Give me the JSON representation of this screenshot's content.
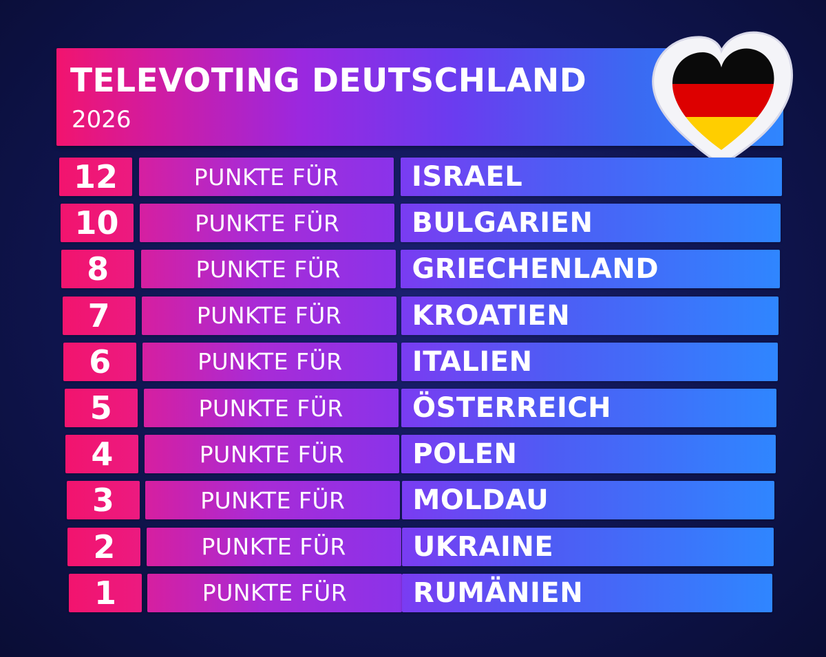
{
  "header": {
    "title": "TELEVOTING DEUTSCHLAND",
    "year": "2026"
  },
  "heart_logo": {
    "flag_colors": [
      "#000000",
      "#dd0000",
      "#ffce00"
    ],
    "icon": "germany-flag-heart-icon"
  },
  "colors": {
    "points": "#f2146e",
    "accent_purple": "#8a33ea",
    "accent_blue": "#2f86ff"
  },
  "results": [
    {
      "points": "12",
      "label": "PUNKTE FÜR",
      "country": "ISRAEL"
    },
    {
      "points": "10",
      "label": "PUNKTE FÜR",
      "country": "BULGARIEN"
    },
    {
      "points": "8",
      "label": "PUNKTE FÜR",
      "country": "GRIECHENLAND"
    },
    {
      "points": "7",
      "label": "PUNKTE FÜR",
      "country": "KROATIEN"
    },
    {
      "points": "6",
      "label": "PUNKTE FÜR",
      "country": "ITALIEN"
    },
    {
      "points": "5",
      "label": "PUNKTE FÜR",
      "country": "ÖSTERREICH"
    },
    {
      "points": "4",
      "label": "PUNKTE FÜR",
      "country": "POLEN"
    },
    {
      "points": "3",
      "label": "PUNKTE FÜR",
      "country": "MOLDAU"
    },
    {
      "points": "2",
      "label": "PUNKTE FÜR",
      "country": "UKRAINE"
    },
    {
      "points": "1",
      "label": "PUNKTE FÜR",
      "country": "RUMÄNIEN"
    }
  ]
}
